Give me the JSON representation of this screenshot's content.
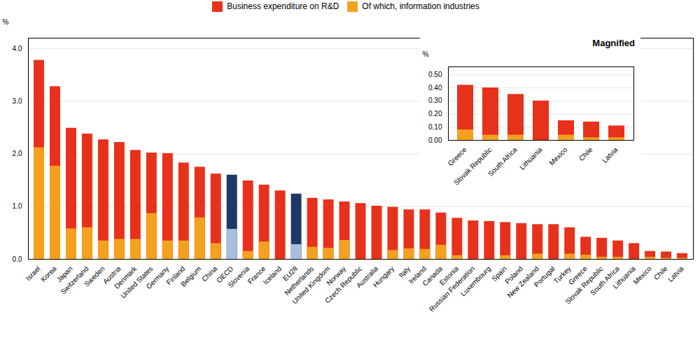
{
  "chart_data": [
    {
      "type": "bar",
      "categories": [
        "Israel",
        "Korea",
        "Japan",
        "Switzerland",
        "Sweden",
        "Austria",
        "Denmark",
        "United States",
        "Germany",
        "Finland",
        "Belgium",
        "China",
        "OECD",
        "Slovenia",
        "France",
        "Iceland",
        "EU28",
        "Netherlands",
        "United Kingdom",
        "Norway",
        "Czech Republic",
        "Australia",
        "Hungary",
        "Italy",
        "Ireland",
        "Canada",
        "Estonia",
        "Russian Federation",
        "Luxembourg",
        "Spain",
        "Poland",
        "New Zealand",
        "Portugal",
        "Turkey",
        "Greece",
        "Slovak Republic",
        "South Africa",
        "Lithuania",
        "Mexico",
        "Chile",
        "Latvia"
      ],
      "series": [
        {
          "name": "Business expenditure on R&D",
          "color": "#e8311a",
          "colors": [
            "#e8311a",
            "#e8311a",
            "#e8311a",
            "#e8311a",
            "#e8311a",
            "#e8311a",
            "#e8311a",
            "#e8311a",
            "#e8311a",
            "#e8311a",
            "#e8311a",
            "#e8311a",
            "#1f3864",
            "#e8311a",
            "#e8311a",
            "#e8311a",
            "#1f3864",
            "#e8311a",
            "#e8311a",
            "#e8311a",
            "#e8311a",
            "#e8311a",
            "#e8311a",
            "#e8311a",
            "#e8311a",
            "#e8311a",
            "#e8311a",
            "#e8311a",
            "#e8311a",
            "#e8311a",
            "#e8311a",
            "#e8311a",
            "#e8311a",
            "#e8311a",
            "#e8311a",
            "#e8311a",
            "#e8311a",
            "#e8311a",
            "#e8311a",
            "#e8311a",
            "#e8311a"
          ],
          "values": [
            3.78,
            3.28,
            2.49,
            2.38,
            2.27,
            2.22,
            2.07,
            2.02,
            2.01,
            1.83,
            1.75,
            1.62,
            1.6,
            1.49,
            1.41,
            1.3,
            1.24,
            1.16,
            1.13,
            1.09,
            1.06,
            1.01,
            0.99,
            0.94,
            0.94,
            0.88,
            0.78,
            0.73,
            0.72,
            0.7,
            0.68,
            0.66,
            0.66,
            0.6,
            0.42,
            0.4,
            0.35,
            0.3,
            0.15,
            0.14,
            0.11
          ]
        },
        {
          "name": "Of which, information industries",
          "color": "#f5a020",
          "colors": [
            "#f5a020",
            "#f5a020",
            "#f5a020",
            "#f5a020",
            "#f5a020",
            "#f5a020",
            "#f5a020",
            "#f5a020",
            "#f5a020",
            "#f5a020",
            "#f5a020",
            "#f5a020",
            "#a8bfdc",
            "#f5a020",
            "#f5a020",
            "#f5a020",
            "#a8bfdc",
            "#f5a020",
            "#f5a020",
            "#f5a020",
            "#f5a020",
            "#f5a020",
            "#f5a020",
            "#f5a020",
            "#f5a020",
            "#f5a020",
            "#f5a020",
            "#f5a020",
            "#f5a020",
            "#f5a020",
            "#f5a020",
            "#f5a020",
            "#f5a020",
            "#f5a020",
            "#f5a020",
            "#f5a020",
            "#f5a020",
            "#f5a020",
            "#f5a020",
            "#f5a020",
            "#f5a020"
          ],
          "values": [
            2.12,
            1.77,
            0.58,
            0.6,
            0.35,
            0.38,
            0.38,
            0.87,
            0.35,
            0.35,
            0.79,
            0.3,
            0.57,
            0.15,
            0.33,
            0.0,
            0.28,
            0.23,
            0.21,
            0.36,
            0.0,
            0.0,
            0.17,
            0.2,
            0.19,
            0.27,
            0.07,
            0.0,
            0.0,
            0.07,
            0.0,
            0.1,
            0.0,
            0.1,
            0.08,
            0.04,
            0.04,
            0.0,
            0.04,
            0.02,
            0.02
          ]
        }
      ],
      "ylabel": "%",
      "ylim": [
        0,
        4.2
      ],
      "yticks": [
        0,
        1,
        2,
        3,
        4
      ],
      "grid": true,
      "stacked": false,
      "legend": "top"
    },
    {
      "type": "bar",
      "title": "Magnified",
      "categories": [
        "Greece",
        "Slovak Republic",
        "South Africa",
        "Lithuania",
        "Mexico",
        "Chile",
        "Latvia"
      ],
      "series": [
        {
          "color": "#e8311a",
          "values": [
            0.42,
            0.4,
            0.35,
            0.3,
            0.15,
            0.14,
            0.11
          ]
        },
        {
          "color": "#f5a020",
          "values": [
            0.08,
            0.04,
            0.04,
            0.0,
            0.04,
            0.02,
            0.02
          ]
        }
      ],
      "ylabel": "%",
      "ylim": [
        0,
        0.56
      ],
      "yticks": [
        0,
        0.1,
        0.2,
        0.3,
        0.4,
        0.5
      ],
      "grid": true,
      "stacked": false
    }
  ]
}
